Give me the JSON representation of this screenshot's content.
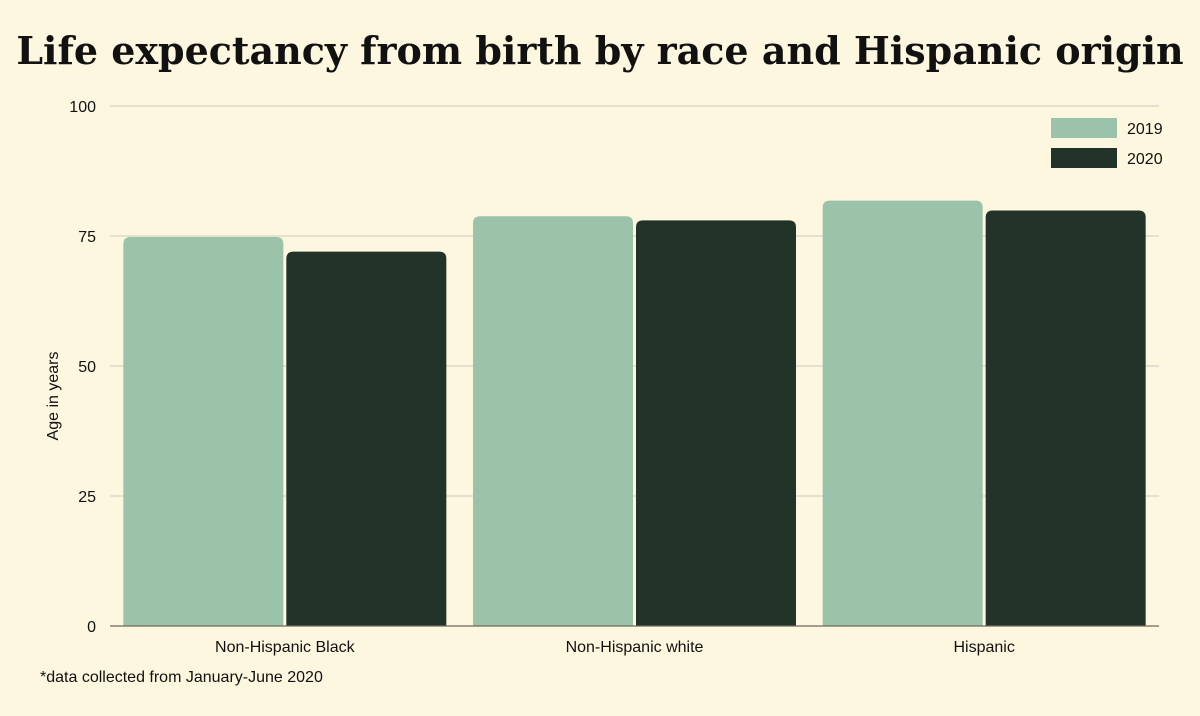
{
  "colors": {
    "background": "#fdf7df",
    "series_2019": "#9ac3aa",
    "series_2020": "#22342a",
    "grid": "#cfcabb",
    "text": "#111111"
  },
  "footnote": "*data collected from January-June 2020",
  "chart_data": {
    "type": "bar",
    "title": "Life expectancy from birth by race and Hispanic origin",
    "xlabel": "",
    "ylabel": "Age in years",
    "ylim": [
      0,
      100
    ],
    "yticks": [
      "0",
      "25",
      "50",
      "75",
      "100"
    ],
    "grid": true,
    "legend_position": "top-right",
    "categories": [
      "Non-Hispanic Black",
      "Non-Hispanic white",
      "Hispanic"
    ],
    "series": [
      {
        "name": "2019",
        "values": [
          74.8,
          78.8,
          81.8
        ],
        "color": "#9ac3aa"
      },
      {
        "name": "2020",
        "values": [
          72.0,
          78.0,
          79.9
        ],
        "color": "#22342a"
      }
    ]
  }
}
